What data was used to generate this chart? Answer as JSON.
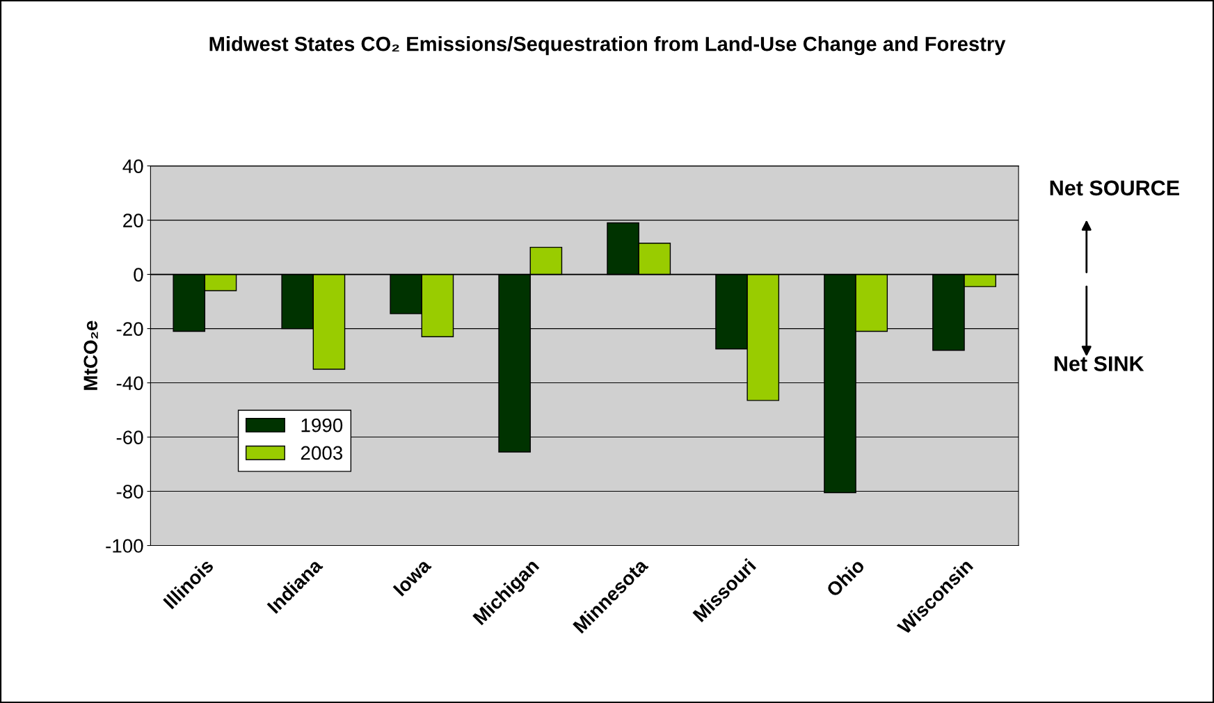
{
  "chart_data": {
    "type": "bar",
    "title": "Midwest States CO₂ Emissions/Sequestration from Land-Use Change and Forestry",
    "ylabel": "MtCO₂e",
    "categories": [
      "Illinois",
      "Indiana",
      "Iowa",
      "Michigan",
      "Minnesota",
      "Missouri",
      "Ohio",
      "Wisconsin"
    ],
    "series": [
      {
        "name": "1990",
        "color": "#003300",
        "values": [
          -21,
          -20,
          -14.5,
          -65.5,
          19,
          -27.5,
          -80.5,
          -28
        ]
      },
      {
        "name": "2003",
        "color": "#99cc00",
        "values": [
          -6,
          -35,
          -23,
          10,
          11.5,
          -46.5,
          -21,
          -4.5
        ]
      }
    ],
    "ylim": [
      -100,
      40
    ],
    "yticks": [
      -100,
      -80,
      -60,
      -40,
      -20,
      0,
      20,
      40
    ],
    "grid": "y",
    "legend": "bottom left",
    "annotations": [
      "Net SOURCE",
      "Net SINK"
    ]
  }
}
